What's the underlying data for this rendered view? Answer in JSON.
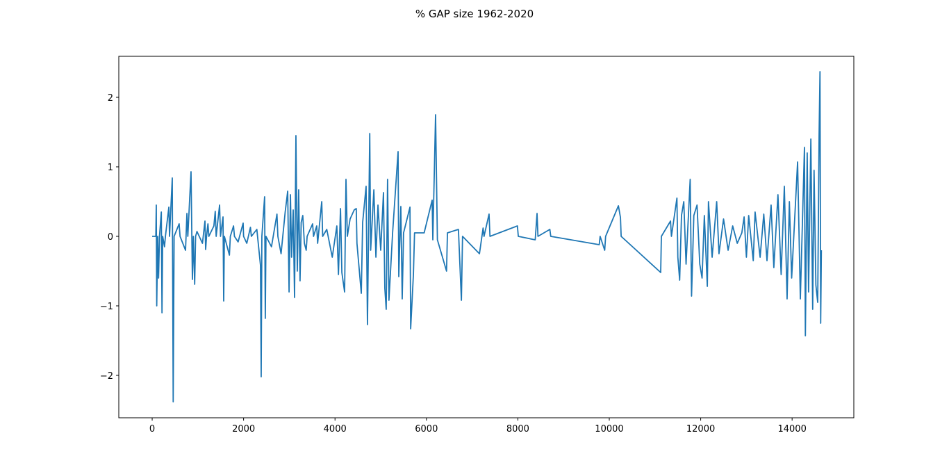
{
  "chart_data": {
    "type": "line",
    "title": "% GAP size 1962-2020",
    "x": [
      0,
      80,
      90,
      100,
      120,
      140,
      160,
      200,
      215,
      230,
      270,
      290,
      365,
      380,
      440,
      460,
      480,
      590,
      610,
      730,
      760,
      780,
      850,
      880,
      900,
      930,
      950,
      980,
      1100,
      1155,
      1170,
      1190,
      1220,
      1240,
      1350,
      1380,
      1400,
      1475,
      1495,
      1550,
      1565,
      1580,
      1690,
      1710,
      1780,
      1800,
      1880,
      1990,
      2000,
      2070,
      2150,
      2170,
      2290,
      2370,
      2385,
      2400,
      2460,
      2475,
      2490,
      2610,
      2730,
      2750,
      2820,
      2910,
      2965,
      2995,
      3025,
      3050,
      3085,
      3115,
      3145,
      3175,
      3205,
      3235,
      3260,
      3295,
      3330,
      3370,
      3390,
      3510,
      3530,
      3600,
      3620,
      3710,
      3730,
      3820,
      3940,
      4040,
      4075,
      4120,
      4150,
      4210,
      4240,
      4270,
      4330,
      4420,
      4465,
      4480,
      4575,
      4605,
      4680,
      4710,
      4760,
      4780,
      4850,
      4895,
      4940,
      5000,
      5060,
      5090,
      5120,
      5150,
      5180,
      5260,
      5380,
      5395,
      5440,
      5470,
      5500,
      5640,
      5655,
      5715,
      5740,
      5950,
      6125,
      6140,
      6200,
      6240,
      6440,
      6460,
      6700,
      6765,
      6790,
      7160,
      7240,
      7260,
      7370,
      7390,
      7990,
      8010,
      8380,
      8420,
      8440,
      8700,
      8720,
      9780,
      9800,
      9900,
      9920,
      10200,
      10245,
      10260,
      11125,
      11140,
      11340,
      11360,
      11480,
      11500,
      11540,
      11580,
      11630,
      11680,
      11770,
      11800,
      11850,
      11920,
      11980,
      12030,
      12080,
      12145,
      12170,
      12250,
      12350,
      12400,
      12500,
      12600,
      12700,
      12800,
      12900,
      12950,
      13000,
      13050,
      13150,
      13190,
      13300,
      13380,
      13450,
      13540,
      13600,
      13690,
      13760,
      13830,
      13890,
      13940,
      13990,
      14120,
      14180,
      14270,
      14290,
      14330,
      14360,
      14410,
      14450,
      14480,
      14520,
      14560,
      14590,
      14610,
      14625,
      14640
    ],
    "series": [
      {
        "color": "#1f77b4",
        "values": [
          0,
          0,
          0.45,
          -1.0,
          0,
          -0.6,
          0,
          0.35,
          -1.1,
          0,
          -0.15,
          0,
          0.42,
          0,
          0.84,
          -2.38,
          0,
          0.18,
          0,
          -0.2,
          0.33,
          0,
          0.93,
          -0.62,
          0,
          -0.69,
          0,
          0.07,
          -0.1,
          0.22,
          -0.19,
          0,
          0.18,
          0,
          0.15,
          0.36,
          0,
          0.45,
          0,
          0.28,
          -0.93,
          0,
          -0.27,
          0,
          0.15,
          0,
          -0.08,
          0.19,
          0,
          -0.1,
          0.13,
          0,
          0.1,
          -0.42,
          -2.02,
          0,
          0.57,
          -1.18,
          0,
          -0.15,
          0.32,
          0,
          -0.25,
          0.35,
          0.65,
          -0.8,
          0.6,
          -0.3,
          0.38,
          -0.88,
          1.45,
          -0.5,
          0.67,
          -0.64,
          0.2,
          0.3,
          -0.1,
          -0.2,
          0,
          0.18,
          0,
          0.15,
          -0.1,
          0.5,
          0,
          0.1,
          -0.3,
          0.15,
          -0.55,
          0.4,
          -0.52,
          -0.8,
          0.82,
          0,
          0.25,
          0.38,
          0.4,
          -0.1,
          -0.82,
          0.2,
          0.72,
          -1.27,
          1.48,
          -0.2,
          0.67,
          -0.3,
          0.45,
          -0.2,
          0.63,
          -0.75,
          -1.05,
          0.82,
          -0.92,
          0.05,
          1.22,
          -0.58,
          0.43,
          -0.9,
          0.05,
          0.42,
          -1.33,
          -0.55,
          0.05,
          0.05,
          0.52,
          -0.05,
          1.75,
          -0.05,
          -0.5,
          0.05,
          0.1,
          -0.92,
          0,
          -0.25,
          0.12,
          0,
          0.32,
          0,
          0.15,
          0,
          -0.05,
          0.33,
          0,
          0.1,
          0,
          -0.12,
          0,
          -0.2,
          0,
          0.44,
          0.27,
          0,
          -0.52,
          0,
          0.22,
          0,
          0.55,
          -0.3,
          -0.63,
          0.3,
          0.5,
          -0.4,
          0.82,
          -0.86,
          0.3,
          0.45,
          -0.4,
          -0.6,
          0.3,
          -0.72,
          0.5,
          -0.3,
          0.5,
          -0.25,
          0.25,
          -0.2,
          0.15,
          -0.1,
          0.05,
          0.28,
          -0.3,
          0.3,
          -0.35,
          0.35,
          -0.3,
          0.32,
          -0.35,
          0.45,
          -0.45,
          0.6,
          -0.55,
          0.72,
          -0.9,
          0.5,
          -0.6,
          1.07,
          -0.9,
          1.28,
          -1.43,
          1.2,
          -0.8,
          1.4,
          -1.05,
          0.95,
          -0.7,
          -0.95,
          1.45,
          2.37,
          -1.25,
          -0.2
        ]
      }
    ],
    "xlim": [
      -730,
      15350
    ],
    "xticks": [
      0,
      2000,
      4000,
      6000,
      8000,
      10000,
      12000,
      14000
    ],
    "ylim": [
      -2.61,
      2.59
    ],
    "yticks": [
      {
        "value": -2,
        "label": "−2"
      },
      {
        "value": -1,
        "label": "−1"
      },
      0,
      1,
      2
    ]
  }
}
